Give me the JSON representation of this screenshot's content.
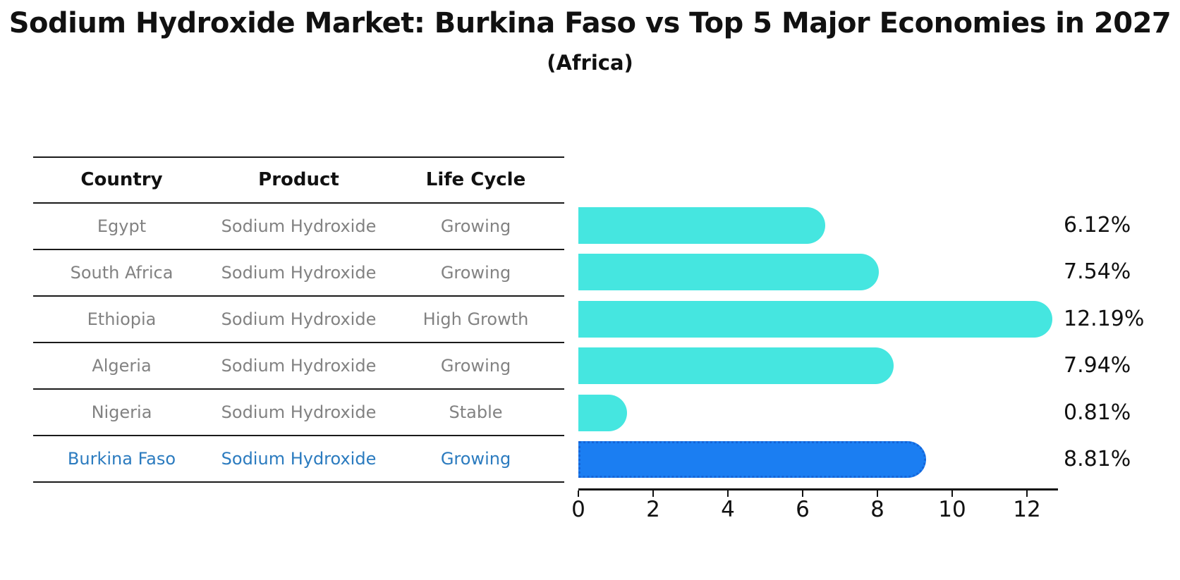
{
  "title": "Sodium Hydroxide Market: Burkina Faso vs Top 5 Major Economies in 2027",
  "subtitle": "(Africa)",
  "colors": {
    "bar_color": "#45E6E0",
    "highlight_bar_color": "#1B7EF2",
    "highlight_bar_border_color": "#1565D8",
    "highlight_text_color": "#2B7BBF",
    "row_text_color": "#828282",
    "text_color": "#111111"
  },
  "table": {
    "headers": [
      "Country",
      "Product",
      "Life Cycle"
    ],
    "rows": [
      {
        "country": "Egypt",
        "product": "Sodium Hydroxide",
        "life_cycle": "Growing",
        "highlight": false
      },
      {
        "country": "South Africa",
        "product": "Sodium Hydroxide",
        "life_cycle": "Growing",
        "highlight": false
      },
      {
        "country": "Ethiopia",
        "product": "Sodium Hydroxide",
        "life_cycle": "High Growth",
        "highlight": false
      },
      {
        "country": "Algeria",
        "product": "Sodium Hydroxide",
        "life_cycle": "Growing",
        "highlight": false
      },
      {
        "country": "Nigeria",
        "product": "Sodium Hydroxide",
        "life_cycle": "Stable",
        "highlight": false
      },
      {
        "country": "Burkina Faso",
        "product": "Sodium Hydroxide",
        "life_cycle": "Growing",
        "highlight": true
      }
    ]
  },
  "chart_data": {
    "type": "bar",
    "orientation": "horizontal",
    "title": "Sodium Hydroxide Market: Burkina Faso vs Top 5 Major Economies in 2027",
    "subtitle": "(Africa)",
    "categories": [
      "Egypt",
      "South Africa",
      "Ethiopia",
      "Algeria",
      "Nigeria",
      "Burkina Faso"
    ],
    "values": [
      6.12,
      7.54,
      12.19,
      7.94,
      0.81,
      8.81
    ],
    "value_labels": [
      "6.12%",
      "7.54%",
      "12.19%",
      "7.94%",
      "0.81%",
      "8.81%"
    ],
    "unit": "%",
    "highlight_index": 5,
    "xlabel": "",
    "ylabel": "",
    "xlim": [
      0,
      12.8
    ],
    "xticks": [
      0,
      2,
      4,
      6,
      8,
      10,
      12
    ],
    "grid": false,
    "legend": false
  }
}
